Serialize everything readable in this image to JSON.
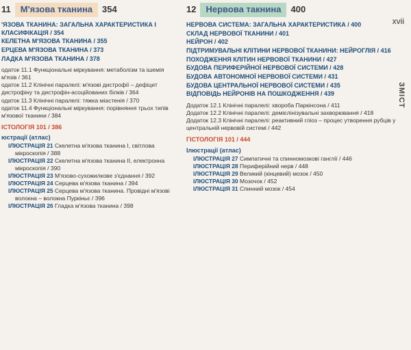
{
  "pageSide": "xvii",
  "sideLabel": "ЗМІСТ",
  "ch11": {
    "num": "11",
    "title": "М'язова тканина",
    "page": "354",
    "headings": [
      "'ЯЗОВА ТКАНИНА: ЗАГАЛЬНА ХАРАКТЕРИСТИКА І КЛАСИФІКАЦІЯ / 354",
      "КЕЛЕТНА М'ЯЗОВА ТКАНИНА / 355",
      "ЕРЦЕВА М'ЯЗОВА ТКАНИНА / 373",
      "ЛАДКА М'ЯЗОВА ТКАНИНА / 378"
    ],
    "addenda": [
      "одаток 11.1 Функціональні міркування: метаболізм та ішемія м'язів / 361",
      "одаток 11.2 Клінічні паралелі: м'язові дистрофії – дефіцит дистрофіну та дистрофін-асоційованих білків / 364",
      "одаток 11.3 Клінічні паралелі: тяжка міастенія / 370",
      "одаток 11.4 Функціональні міркування: порівняння трьох типів м'язової тканини / 384"
    ],
    "hist": "ІСТОЛОГІЯ 101 / 386",
    "illusHead": "юстрації (атлас)",
    "illus": [
      "ІЛЮСТРАЦІЯ 21 Скелетна м'язова тканина I, світлова мікроскопія / 388",
      "ІЛЮСТРАЦІЯ 22 Скелетна м'язова тканина II, електронна мікроскопія / 390",
      "ІЛЮСТРАЦІЯ 23 М'язово-сухожилкове з'єднання / 392",
      "ІЛЮСТРАЦІЯ 24 Серцева м'язова тканина / 394",
      "ІЛЮСТРАЦІЯ 25 Серцева м'язова тканина. Провідні м'язові волокна – волокна Пуркіньє / 396",
      "ІЛЮСТРАЦІЯ 26 Гладка м'язова тканина / 398"
    ]
  },
  "ch12": {
    "num": "12",
    "title": "Нервова такнина",
    "page": "400",
    "headings": [
      "НЕРВОВА СИСТЕМА: ЗАГАЛЬНА ХАРАКТЕРИСТИКА / 400",
      "СКЛАД НЕРВОВОЇ ТКАНИНИ / 401",
      "НЕЙРОН / 402",
      "ПІДТРИМУВАЛЬНІ КЛІТИНИ НЕРВОВОЇ ТКАНИНИ: НЕЙРОГЛІЯ / 416",
      "ПОХОДЖЕННЯ КЛІТИН НЕРВОВОЇ ТКАНИНИ / 427",
      "БУДОВА ПЕРИФЕРІЙНОЇ НЕРВОВОЇ СИСТЕМИ / 428",
      "БУДОВА АВТОНОМНОЇ НЕРВОВОЇ СИСТЕМИ / 431",
      "БУДОВА ЦЕНТРАЛЬНОЇ НЕРВОВОЇ СИСТЕМИ / 435",
      "ВІДПОВІДЬ НЕЙРОНІВ НА ПОШКОДЖЕННЯ / 439"
    ],
    "addenda": [
      "Додаток 12.1 Клінічні паралелі: хвороба Паркінсона / 411",
      "Додаток 12.2 Клінічні паралелі: демієлінізувальні захворювання / 418",
      "Додаток 12.3 Клінічні паралелі: реактивний гліоз – процес утворення рубців у центральній нервовій системі / 442"
    ],
    "hist": "ГІСТОЛОГІЯ 101 / 444",
    "illusHead": "Ілюстрації (атлас)",
    "illus": [
      "ІЛЮСТРАЦІЯ 27 Симпатичні та спинномозкові ганглії / 446",
      "ІЛЮСТРАЦІЯ 28 Периферійний нерв / 448",
      "ІЛЮСТРАЦІЯ 29 Великий (кінцевий) мозок / 450",
      "ІЛЮСТРАЦІЯ 30 Мозочок / 452",
      "ІЛЮСТРАЦІЯ 31 Спинний мозок / 454"
    ]
  }
}
